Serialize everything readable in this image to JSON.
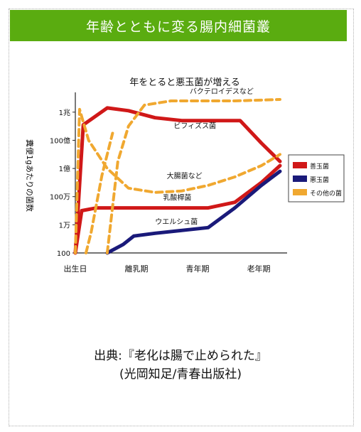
{
  "banner": {
    "title": "年齢とともに変る腸内細菌叢"
  },
  "chart_data": {
    "type": "line",
    "title": "年をとると悪玉菌が増える",
    "ylabel": "糞便1gあたりの菌数",
    "y_ticks": [
      "100",
      "1万",
      "100万",
      "1億",
      "100億",
      "1兆"
    ],
    "x_ticks": [
      "出生日",
      "離乳期",
      "青年期",
      "老年期"
    ],
    "curve_labels": {
      "bacteroides": "バクテロイデスなど",
      "bifidus": "ビフィズス菌",
      "ecoli": "大腸菌など",
      "lacto": "乳酸桿菌",
      "welch": "ウエルシュ菌"
    },
    "legend": [
      {
        "name": "善玉菌",
        "color": "#d01818"
      },
      {
        "name": "悪玉菌",
        "color": "#1a1a7a"
      },
      {
        "name": "その他の菌",
        "color": "#f0a830"
      }
    ],
    "series": [
      {
        "name": "ビフィズス菌",
        "group": "善玉菌",
        "color": "#d01818",
        "style": "solid",
        "points": [
          [
            0,
            0
          ],
          [
            0.15,
            9.1
          ],
          [
            0.6,
            10.3
          ],
          [
            1.0,
            10.1
          ],
          [
            1.5,
            9.6
          ],
          [
            2.0,
            9.4
          ],
          [
            2.5,
            9.4
          ],
          [
            3.0,
            9.4
          ],
          [
            3.1,
            9.4
          ],
          [
            3.5,
            7.8
          ],
          [
            3.85,
            6.5
          ]
        ]
      },
      {
        "name": "乳酸桿菌",
        "group": "善玉菌",
        "color": "#d01818",
        "style": "solid",
        "points": [
          [
            0,
            0
          ],
          [
            0.12,
            3.0
          ],
          [
            0.4,
            3.2
          ],
          [
            1.0,
            3.2
          ],
          [
            1.8,
            3.2
          ],
          [
            2.5,
            3.2
          ],
          [
            3.0,
            3.6
          ],
          [
            3.5,
            5.0
          ],
          [
            3.85,
            6.2
          ]
        ]
      },
      {
        "name": "ウエルシュ菌",
        "group": "悪玉菌",
        "color": "#1a1a7a",
        "style": "solid",
        "points": [
          [
            0.6,
            0
          ],
          [
            0.9,
            0.6
          ],
          [
            1.1,
            1.2
          ],
          [
            1.5,
            1.4
          ],
          [
            2.0,
            1.6
          ],
          [
            2.5,
            1.8
          ],
          [
            3.0,
            3.2
          ],
          [
            3.5,
            4.8
          ],
          [
            3.85,
            5.8
          ]
        ]
      },
      {
        "name": "バクテロイデスなど",
        "group": "その他の菌",
        "color": "#f0a830",
        "style": "dashed",
        "points": [
          [
            0.6,
            0
          ],
          [
            0.8,
            6.5
          ],
          [
            1.0,
            9.0
          ],
          [
            1.3,
            10.5
          ],
          [
            1.8,
            10.8
          ],
          [
            2.5,
            10.8
          ],
          [
            3.0,
            10.8
          ],
          [
            3.85,
            10.9
          ]
        ]
      },
      {
        "name": "大腸菌など",
        "group": "その他の菌",
        "color": "#f0a830",
        "style": "dashed",
        "points": [
          [
            0,
            0
          ],
          [
            0.08,
            10.2
          ],
          [
            0.25,
            8.0
          ],
          [
            0.6,
            6.0
          ],
          [
            1.0,
            4.6
          ],
          [
            1.5,
            4.3
          ],
          [
            2.0,
            4.4
          ],
          [
            2.5,
            4.8
          ],
          [
            3.0,
            5.4
          ],
          [
            3.5,
            6.2
          ],
          [
            3.85,
            7.0
          ]
        ]
      },
      {
        "name": "乳酸桿菌(初期)",
        "group": "その他の菌",
        "color": "#f0a830",
        "style": "dashed",
        "points": [
          [
            0.2,
            0
          ],
          [
            0.3,
            1.5
          ],
          [
            0.5,
            5.5
          ],
          [
            0.7,
            8.5
          ]
        ]
      }
    ]
  },
  "citation": {
    "line1": "出典:『老化は腸で止められた』",
    "line2": "(光岡知足/青春出版社)"
  }
}
